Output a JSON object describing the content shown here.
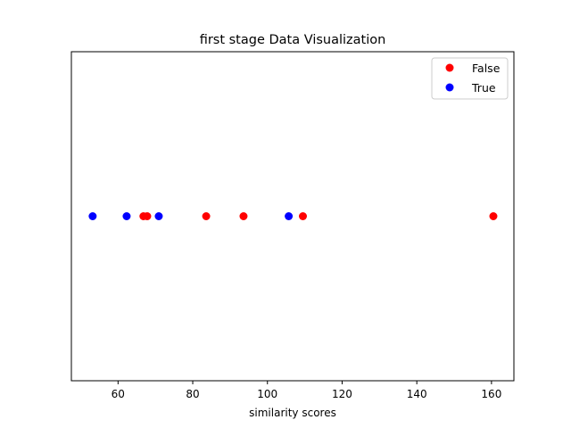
{
  "chart_data": {
    "type": "scatter",
    "title": "first stage Data Visualization",
    "xlabel": "similarity scores",
    "ylabel": "",
    "xlim": [
      47.5,
      166
    ],
    "xticks": [
      60,
      80,
      100,
      120,
      140,
      160
    ],
    "y_axis_visible": false,
    "grid": false,
    "legend_placement": "top-right",
    "series": [
      {
        "name": "False",
        "color": "#ff0000",
        "x": [
          66.8,
          67.8,
          83.6,
          93.6,
          109.5,
          160.5
        ],
        "y": [
          0,
          0,
          0,
          0,
          0,
          0
        ]
      },
      {
        "name": "True",
        "color": "#0000ff",
        "x": [
          53.2,
          62.3,
          70.9,
          105.7
        ],
        "y": [
          0,
          0,
          0,
          0
        ]
      }
    ]
  }
}
